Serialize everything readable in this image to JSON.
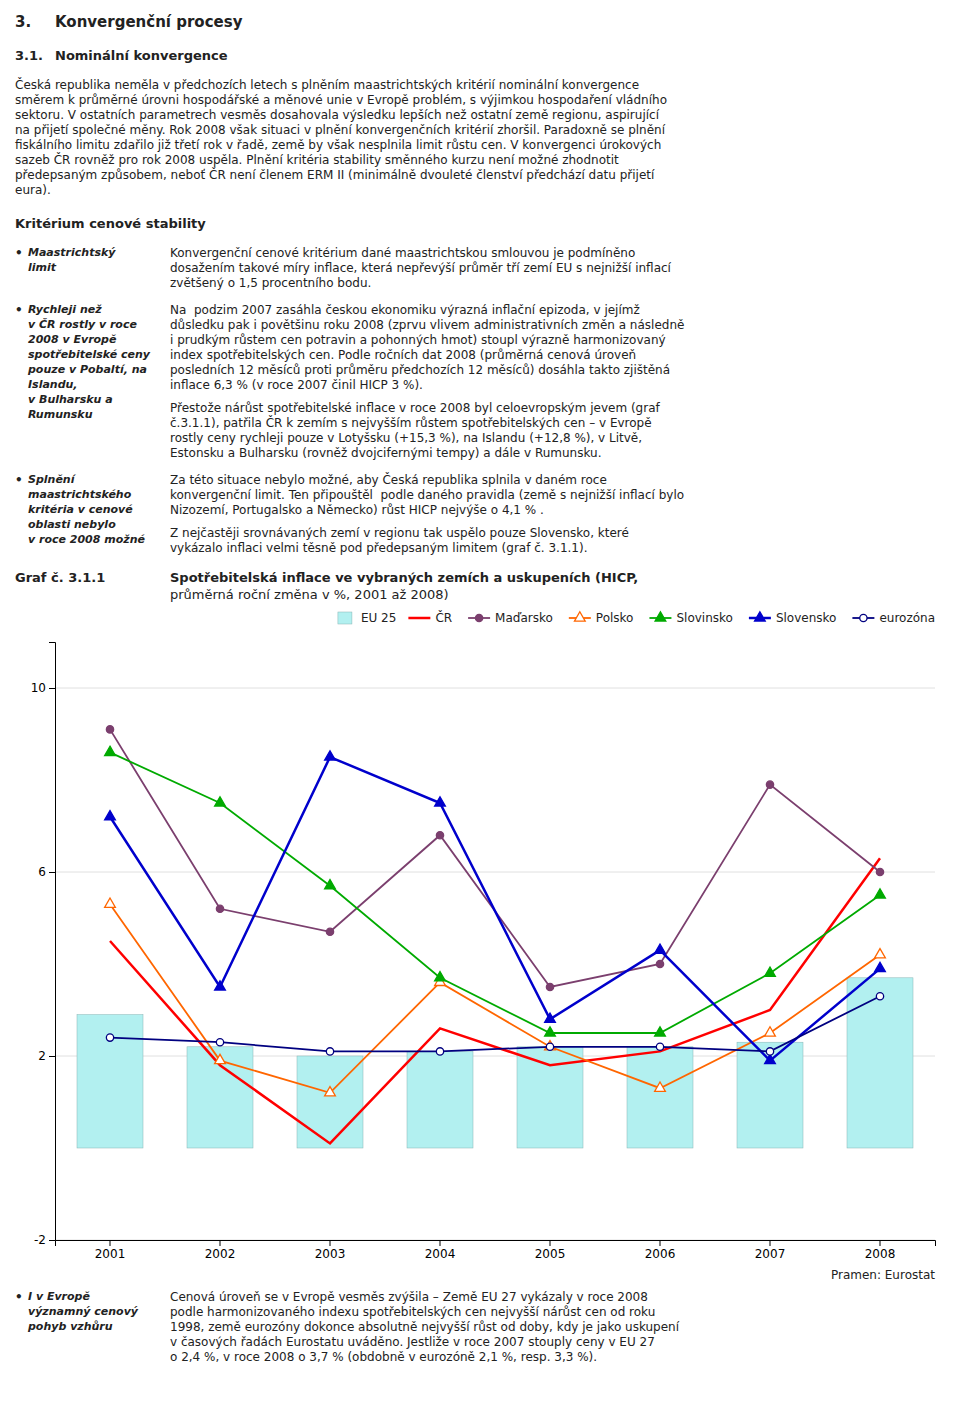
{
  "page_title_num": "3.",
  "page_title": "Konvergenční procesy",
  "section_num": "3.1.",
  "section_title": "Nominální konvergence",
  "intro": [
    "Česká republika neměla v předchozích letech s plněním maastrichtských kritérií nominální konvergence",
    "směrem k průměrné úrovni hospodářské a měnové unie v Evropě problém, s výjimkou hospodaření vládního",
    "sektoru. V ostatních parametrech vesměs dosahovala výsledku lepších než ostatní země regionu, aspirující",
    "na přijetí společné měny. Rok 2008 však situaci v plnění konvergenčních kritérií zhoršil. Paradoxně se plnění",
    "fiskálního limitu zdařilo již třetí rok v řadě, země by však nesplnila limit růstu cen. V konvergenci úrokových",
    "sazeb ČR rovněž pro rok 2008 uspěla. Plnění kritéria stability směnného kurzu není možné zhodnotit",
    "předepsaným způsobem, neboť ČR není členem ERM II (minimálně dvouleté členství předchází datu přijetí",
    "eura)."
  ],
  "subsection_title": "Kritérium cenové stability",
  "bullet": "•",
  "blocks": [
    {
      "heading": [
        "Maastrichtský",
        "limit"
      ],
      "paragraphs": [
        [
          "Konvergenční cenové kritérium dané maastrichtskou smlouvou je podmíněno",
          "dosažením takové míry inflace, která nepřevýší průměr tří zemí EU s nejnižší inflací",
          "zvětšený o 1,5 procentního bodu."
        ]
      ]
    },
    {
      "heading": [
        "Rychleji než",
        "v ČR rostly v roce",
        "2008 v Evropě",
        "spotřebitelské ceny",
        "pouze v Pobaltí, na",
        "Islandu,",
        "v Bulharsku a",
        "Rumunsku"
      ],
      "paragraphs": [
        [
          "Na  podzim 2007 zasáhla českou ekonomiku výrazná inflační epizoda, v jejímž",
          "důsledku pak i povětšinu roku 2008 (zprvu vlivem administrativních změn a následně",
          "i prudkým růstem cen potravin a pohonných hmot) stoupl výrazně harmonizovaný",
          "index spotřebitelských cen. Podle ročních dat 2008 (průměrná cenová úroveň",
          "posledních 12 měsíců proti průměru předchozích 12 měsíců) dosáhla takto zjištěná",
          "inflace 6,3 % (v roce 2007 činil HICP 3 %)."
        ],
        [
          "Přestože nárůst spotřebitelské inflace v roce 2008 byl celoevropským jevem (graf",
          "č.3.1.1), patřila ČR k zemím s nejvyšším růstem spotřebitelských cen – v Evropě",
          "rostly ceny rychleji pouze v Lotyšsku (+15,3 %), na Islandu (+12,8 %), v Litvě,",
          "Estonsku a Bulharsku (rovněž dvojcifernými tempy) a dále v Rumunsku."
        ]
      ]
    },
    {
      "heading": [
        "Splnění",
        "maastrichtského",
        "kritéria v cenové",
        "oblasti nebylo",
        "v roce 2008 možné"
      ],
      "paragraphs": [
        [
          "Za této situace nebylo možné, aby Česká republika splnila v daném roce",
          "konvergenční limit. Ten připouštěl  podle daného pravidla (země s nejnižší inflací bylo",
          "Nizozemí, Portugalsko a Německo) růst HICP nejvýše o 4,1 % ."
        ],
        [
          "Z nejčastěji srovnávaných zemí v regionu tak uspělo pouze Slovensko, které",
          "vykázalo inflaci velmi těsně pod předepsaným limitem (graf č. 3.1.1)."
        ]
      ]
    }
  ],
  "chart_label": "Graf č. 3.1.1",
  "chart_data": {
    "type": "bar",
    "title": "Spotřebitelská inflace ve vybraných zemích a uskupeních (HICP,",
    "subtitle": "průměrná roční změna v %, 2001 až 2008)",
    "categories": [
      "2001",
      "2002",
      "2003",
      "2004",
      "2005",
      "2006",
      "2007",
      "2008"
    ],
    "series": [
      {
        "name": "EU 25",
        "type": "bar",
        "color": "#b2f0f0",
        "values": [
          2.9,
          2.2,
          2.0,
          2.1,
          2.2,
          2.2,
          2.3,
          3.7
        ]
      },
      {
        "name": "ČR",
        "type": "line",
        "color": "#ff0000",
        "marker": "none",
        "values": [
          4.5,
          1.8,
          0.1,
          2.6,
          1.8,
          2.1,
          3.0,
          6.3
        ]
      },
      {
        "name": "Maďarsko",
        "type": "line",
        "color": "#7b3f6e",
        "marker": "circle",
        "values": [
          9.1,
          5.2,
          4.7,
          6.8,
          3.5,
          4.0,
          7.9,
          6.0
        ]
      },
      {
        "name": "Polsko",
        "type": "line",
        "color": "#ff6600",
        "marker": "open-triangle",
        "values": [
          5.3,
          1.9,
          1.2,
          3.6,
          2.2,
          1.3,
          2.5,
          4.2
        ]
      },
      {
        "name": "Slovinsko",
        "type": "line",
        "color": "#00aa00",
        "marker": "triangle",
        "values": [
          8.6,
          7.5,
          5.7,
          3.7,
          2.5,
          2.5,
          3.8,
          5.5
        ]
      },
      {
        "name": "Slovensko",
        "type": "line",
        "color": "#0000cc",
        "marker": "triangle",
        "values": [
          7.2,
          3.5,
          8.5,
          7.5,
          2.8,
          4.3,
          1.9,
          3.9
        ]
      },
      {
        "name": "eurozóna",
        "type": "line",
        "color": "#000080",
        "marker": "open-circle",
        "values": [
          2.4,
          2.3,
          2.1,
          2.1,
          2.2,
          2.2,
          2.1,
          3.3
        ]
      }
    ],
    "ylim": [
      -2,
      11
    ],
    "yticks": [
      -2,
      2,
      6,
      10
    ],
    "grid": true,
    "legend": "upper right"
  },
  "source": "Pramen: Eurostat",
  "closing_block": {
    "heading": [
      "I v Evropě",
      "významný cenový",
      "pohyb vzhůru"
    ],
    "paragraphs": [
      [
        "Cenová úroveň se v Evropě vesměs zvýšila – Země EU 27 vykázaly v roce 2008",
        "podle harmonizovaného indexu spotřebitelských cen nejvyšší nárůst cen od roku",
        "1998, země eurozóny dokonce absolutně nejvyšší růst od doby, kdy je jako uskupení",
        "v časových řadách Eurostatu uváděno. Jestliže v roce 2007 stouply ceny v EU 27",
        "o 2,4 %, v roce 2008 o 3,7 % (obdobně v eurozóně 2,1 %, resp. 3,3 %)."
      ]
    ]
  }
}
